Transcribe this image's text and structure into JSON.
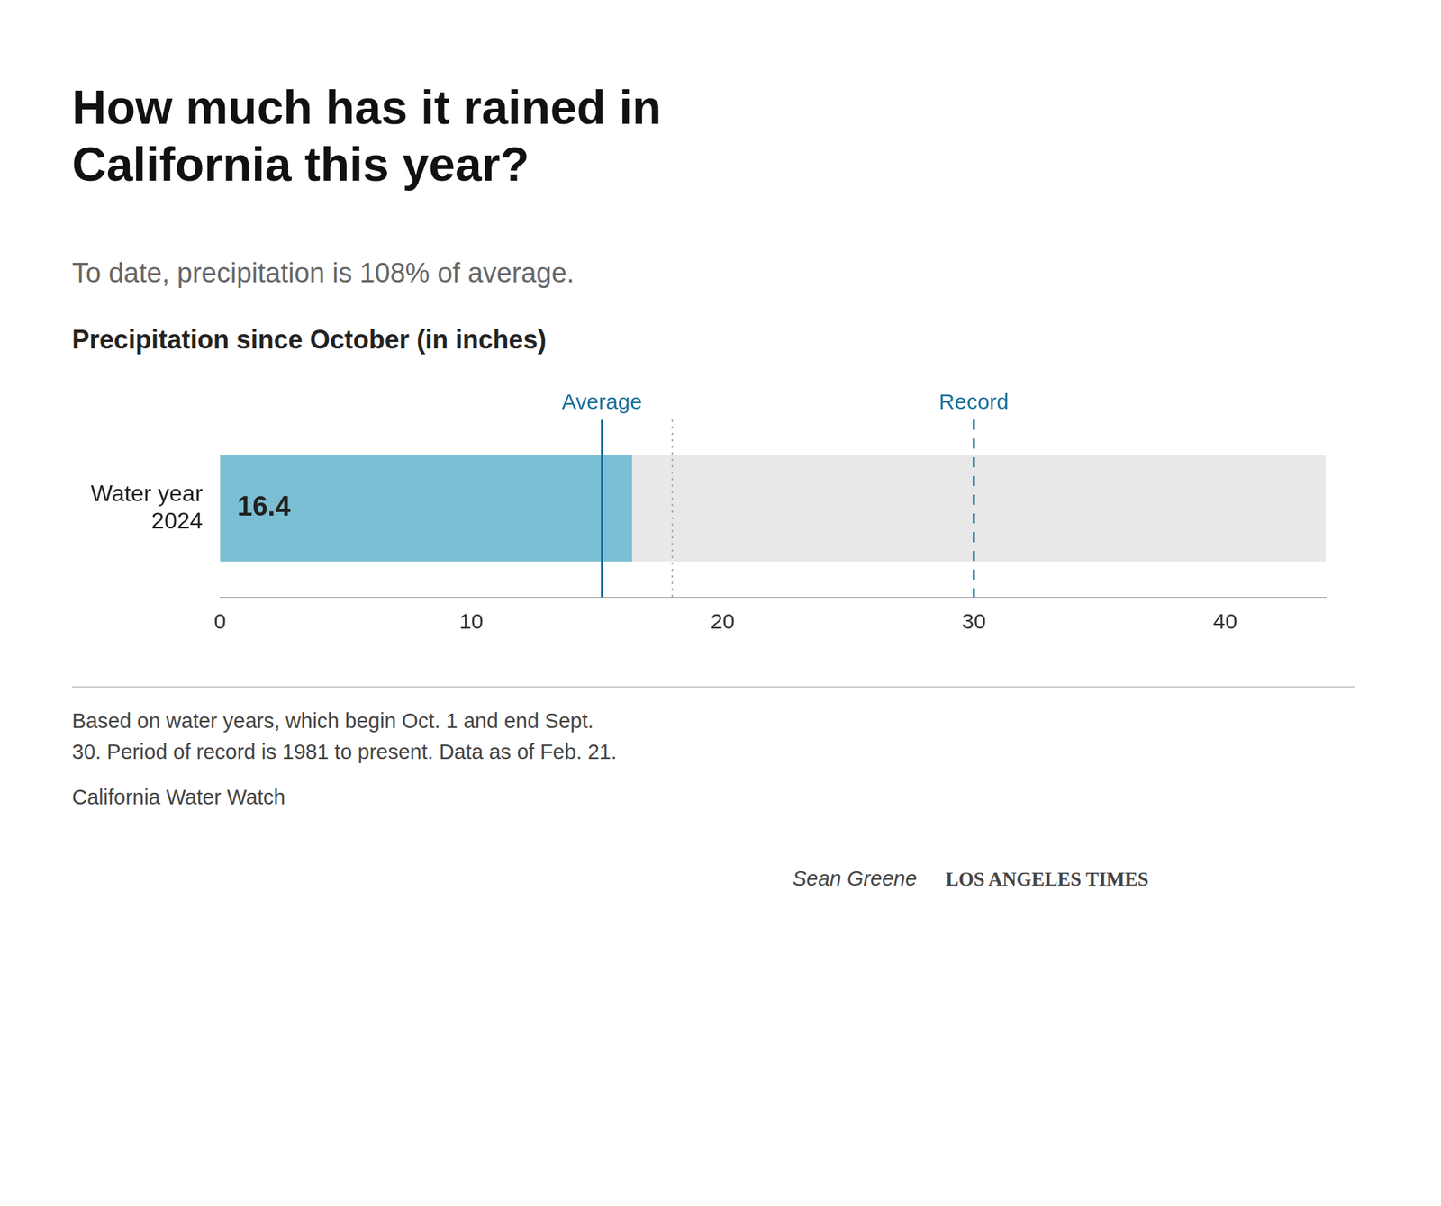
{
  "chart_data": {
    "type": "bar",
    "orientation": "horizontal",
    "title": "How much has it rained in\nCalifornia this year?",
    "subtitle": "To date, precipitation is 108% of average.",
    "section_label": "Precipitation since October (in inches)",
    "categories": [
      "Water year\n2024"
    ],
    "values": [
      16.4
    ],
    "color": "#7bbfd4",
    "track_color": "#e8e8e8",
    "data_labels": true,
    "reference_lines": [
      {
        "value": 15.2,
        "label": "Average",
        "color": "#1a6e99",
        "line_style": "solid"
      },
      {
        "value": 30.0,
        "label": "Record",
        "color": "#1a6e99",
        "line_style": "dashed"
      },
      {
        "value": 18.0,
        "color": "#aaaaaa",
        "line_style": "dotted"
      }
    ],
    "xlim": [
      0,
      44
    ],
    "xticks": [
      0,
      10,
      20,
      30,
      40
    ],
    "grid": false,
    "footnote": [
      "Based on water years, which begin Oct. 1 and end Sept.",
      "30. Period of record is 1981 to present. Data as of Feb. 21."
    ],
    "source": "California Water Watch",
    "credit": [
      "Sean Greene",
      "LOS ANGELES TIMES"
    ]
  }
}
